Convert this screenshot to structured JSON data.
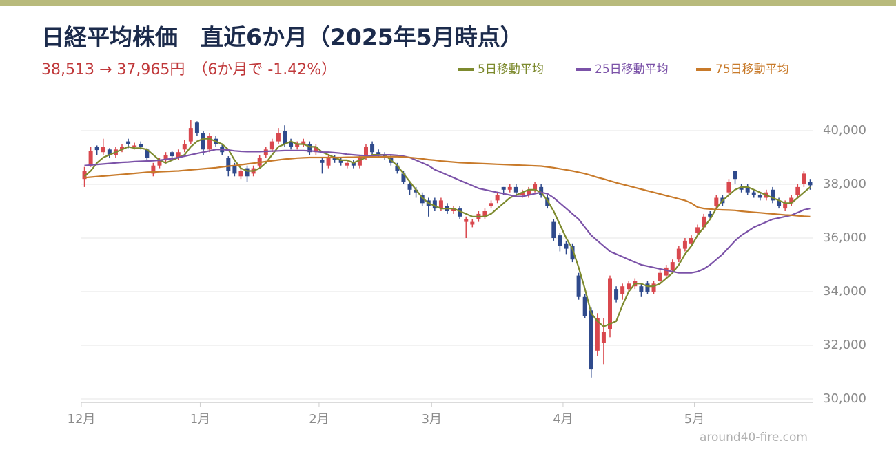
{
  "chart_data": {
    "type": "candlestick",
    "title": "日経平均株価　直近6か月（2025年5月時点）",
    "subtitle": "38,513 → 37,965円　（6か月で -1.42%）",
    "watermark": "around40-fire.com",
    "categories": [
      "12月",
      null,
      null,
      null,
      null,
      null,
      null,
      null,
      null,
      null,
      null,
      null,
      null,
      null,
      null,
      null,
      null,
      null,
      null,
      "1月",
      null,
      null,
      null,
      null,
      null,
      null,
      null,
      null,
      null,
      null,
      null,
      null,
      null,
      null,
      null,
      null,
      null,
      null,
      "2月",
      null,
      null,
      null,
      null,
      null,
      null,
      null,
      null,
      null,
      null,
      null,
      null,
      null,
      null,
      null,
      null,
      null,
      "3月",
      null,
      null,
      null,
      null,
      null,
      null,
      null,
      null,
      null,
      null,
      null,
      null,
      null,
      null,
      null,
      null,
      null,
      null,
      null,
      null,
      "4月",
      null,
      null,
      null,
      null,
      null,
      null,
      null,
      null,
      null,
      null,
      null,
      null,
      null,
      null,
      null,
      null,
      null,
      null,
      null,
      null,
      "5月",
      null,
      null,
      null,
      null,
      null,
      null,
      null,
      null,
      null,
      null,
      null,
      null,
      null,
      null,
      null,
      null,
      null,
      null
    ],
    "open": [
      38200,
      38700,
      39400,
      39200,
      39300,
      39100,
      39300,
      39600,
      39400,
      39500,
      39300,
      38400,
      38700,
      38900,
      39200,
      39000,
      39300,
      39600,
      40300,
      39900,
      39300,
      39700,
      39400,
      39000,
      38700,
      38300,
      38600,
      38400,
      38700,
      39100,
      39300,
      39600,
      40000,
      39600,
      39400,
      39500,
      39500,
      39200,
      38900,
      38700,
      39000,
      38900,
      38700,
      38800,
      38700,
      39000,
      39500,
      39200,
      39100,
      39000,
      38700,
      38400,
      38000,
      37800,
      37600,
      37400,
      37400,
      37100,
      37200,
      37000,
      37100,
      36600,
      36500,
      36700,
      36800,
      37200,
      37400,
      37900,
      37800,
      37900,
      37600,
      37600,
      37800,
      37900,
      37500,
      36600,
      36100,
      35800,
      35700,
      34600,
      33800,
      33300,
      31800,
      32100,
      32600,
      34100,
      33900,
      34100,
      34200,
      34200,
      34300,
      34000,
      34400,
      34600,
      34800,
      35200,
      35600,
      35800,
      36200,
      36400,
      36900,
      37200,
      37500,
      37700,
      38500,
      37900,
      37900,
      37700,
      37600,
      37500,
      37800,
      37400,
      37100,
      37300,
      37600,
      38000,
      38100
    ],
    "high": [
      38650,
      39400,
      39450,
      39700,
      39350,
      39400,
      39500,
      39700,
      39550,
      39600,
      39350,
      38800,
      39000,
      39200,
      39250,
      39300,
      39650,
      40400,
      40350,
      40000,
      39900,
      39800,
      39500,
      39050,
      38800,
      38600,
      38700,
      38700,
      39100,
      39400,
      39700,
      40100,
      40200,
      39700,
      39600,
      39700,
      39600,
      39500,
      39000,
      39100,
      39100,
      39000,
      38900,
      38900,
      39100,
      39500,
      39600,
      39300,
      39200,
      39100,
      38800,
      38500,
      38100,
      37900,
      37700,
      37500,
      37500,
      37500,
      37300,
      37200,
      37200,
      36800,
      36700,
      37000,
      37100,
      37400,
      37700,
      37900,
      38000,
      38000,
      37800,
      37900,
      38100,
      38000,
      37600,
      36700,
      36200,
      35900,
      35800,
      34700,
      33900,
      33400,
      33200,
      33000,
      34600,
      34200,
      34300,
      34400,
      34500,
      34300,
      34400,
      34400,
      34800,
      35000,
      35200,
      35700,
      36000,
      36100,
      36500,
      36900,
      37000,
      37600,
      37600,
      38200,
      38500,
      38000,
      38000,
      37800,
      37700,
      37800,
      37900,
      37500,
      37400,
      37600,
      38000,
      38500,
      38200
    ],
    "low": [
      37900,
      38650,
      39100,
      39100,
      39000,
      39000,
      39200,
      39350,
      39300,
      39300,
      38900,
      38300,
      38600,
      38800,
      38950,
      38900,
      39200,
      39500,
      39800,
      39100,
      39200,
      39400,
      39100,
      38300,
      38300,
      38200,
      38100,
      38300,
      38600,
      39000,
      39200,
      39500,
      39400,
      39300,
      39300,
      39400,
      39100,
      39100,
      38400,
      38600,
      38800,
      38700,
      38600,
      38600,
      38600,
      38900,
      39100,
      39000,
      38900,
      38700,
      38400,
      38000,
      37600,
      37500,
      37200,
      36800,
      37000,
      37000,
      36900,
      36900,
      36700,
      36000,
      36400,
      36600,
      36700,
      37100,
      37300,
      37600,
      37700,
      37600,
      37500,
      37500,
      37700,
      37500,
      37100,
      35900,
      35500,
      35400,
      35100,
      33700,
      33000,
      30800,
      31600,
      31300,
      32300,
      33600,
      33700,
      34000,
      34100,
      33800,
      33900,
      33900,
      34300,
      34500,
      34700,
      35100,
      35500,
      35700,
      36100,
      36300,
      36700,
      37100,
      37200,
      37600,
      38000,
      37700,
      37600,
      37500,
      37400,
      37400,
      37300,
      37100,
      37000,
      37200,
      37500,
      37900,
      37800
    ],
    "close": [
      38510,
      39250,
      39280,
      39400,
      39100,
      39300,
      39400,
      39500,
      39450,
      39400,
      39000,
      38700,
      38900,
      39100,
      39050,
      39200,
      39500,
      40100,
      39900,
      39300,
      39800,
      39500,
      39200,
      38500,
      38400,
      38500,
      38300,
      38600,
      39000,
      39300,
      39600,
      39900,
      39500,
      39400,
      39500,
      39600,
      39200,
      39400,
      38800,
      39000,
      38900,
      38800,
      38800,
      38700,
      39000,
      39400,
      39200,
      39100,
      39000,
      38800,
      38500,
      38100,
      37800,
      37700,
      37300,
      37200,
      37100,
      37400,
      37000,
      37100,
      36800,
      36700,
      36600,
      36900,
      37000,
      37300,
      37600,
      37800,
      37900,
      37700,
      37700,
      37800,
      38000,
      37600,
      37200,
      36000,
      35700,
      35600,
      35200,
      33800,
      33100,
      31100,
      33000,
      32500,
      34500,
      33700,
      34200,
      34300,
      34400,
      34000,
      34000,
      34300,
      34700,
      34900,
      35100,
      35600,
      35900,
      36000,
      36400,
      36800,
      36800,
      37500,
      37300,
      38100,
      38200,
      37800,
      37700,
      37600,
      37500,
      37700,
      37400,
      37200,
      37300,
      37500,
      37900,
      38400,
      37965
    ],
    "up_color": "#d9484e",
    "down_color": "#2f4a8c",
    "series": [
      {
        "name": "5日移動平均",
        "color": "#7d8a2e",
        "values": [
          38300,
          38500,
          38800,
          39000,
          39100,
          39200,
          39300,
          39400,
          39350,
          39350,
          39300,
          39100,
          38900,
          38800,
          38900,
          39000,
          39100,
          39400,
          39600,
          39700,
          39700,
          39600,
          39500,
          39300,
          38900,
          38600,
          38500,
          38500,
          38600,
          38800,
          39100,
          39400,
          39500,
          39600,
          39500,
          39500,
          39400,
          39400,
          39200,
          39100,
          39000,
          38900,
          38900,
          38800,
          38900,
          39000,
          39100,
          39100,
          39100,
          38900,
          38700,
          38400,
          38100,
          37800,
          37500,
          37300,
          37200,
          37100,
          37100,
          37100,
          37000,
          36900,
          36800,
          36800,
          36800,
          36900,
          37100,
          37300,
          37500,
          37600,
          37700,
          37800,
          37800,
          37700,
          37400,
          37000,
          36500,
          36000,
          35600,
          34900,
          34100,
          33200,
          32900,
          32700,
          32800,
          32900,
          33500,
          34000,
          34300,
          34300,
          34200,
          34200,
          34300,
          34500,
          34700,
          35000,
          35400,
          35700,
          36100,
          36400,
          36700,
          37100,
          37400,
          37600,
          37800,
          37900,
          37900,
          37800,
          37700,
          37600,
          37500,
          37400,
          37300,
          37300,
          37500,
          37700,
          37900
        ]
      },
      {
        "name": "25日移動平均",
        "color": "#7b52a8",
        "values": [
          38700,
          38720,
          38740,
          38760,
          38780,
          38800,
          38820,
          38830,
          38850,
          38860,
          38870,
          38880,
          38900,
          38930,
          38960,
          39000,
          39050,
          39100,
          39150,
          39200,
          39250,
          39300,
          39300,
          39280,
          39250,
          39230,
          39220,
          39220,
          39220,
          39230,
          39240,
          39250,
          39260,
          39260,
          39260,
          39260,
          39250,
          39230,
          39200,
          39200,
          39180,
          39160,
          39120,
          39100,
          39080,
          39070,
          39070,
          39080,
          39100,
          39100,
          39080,
          39050,
          39000,
          38900,
          38800,
          38700,
          38550,
          38450,
          38350,
          38250,
          38150,
          38050,
          37950,
          37850,
          37800,
          37750,
          37700,
          37650,
          37600,
          37550,
          37550,
          37600,
          37650,
          37700,
          37650,
          37500,
          37300,
          37100,
          36900,
          36700,
          36400,
          36100,
          35900,
          35700,
          35500,
          35400,
          35300,
          35200,
          35100,
          35000,
          34950,
          34900,
          34850,
          34800,
          34750,
          34700,
          34700,
          34700,
          34750,
          34850,
          35000,
          35200,
          35400,
          35650,
          35900,
          36100,
          36250,
          36400,
          36500,
          36600,
          36700,
          36750,
          36800,
          36850,
          36950,
          37050,
          37100
        ]
      },
      {
        "name": "75日移動平均",
        "color": "#c87a2a",
        "values": [
          38250,
          38270,
          38290,
          38310,
          38330,
          38350,
          38370,
          38390,
          38410,
          38430,
          38450,
          38460,
          38470,
          38480,
          38490,
          38500,
          38520,
          38540,
          38560,
          38580,
          38600,
          38620,
          38650,
          38680,
          38700,
          38730,
          38760,
          38790,
          38820,
          38850,
          38880,
          38910,
          38940,
          38960,
          38980,
          38990,
          39000,
          39000,
          39000,
          39000,
          39000,
          39000,
          39010,
          39010,
          39020,
          39020,
          39020,
          39020,
          39030,
          39030,
          39030,
          39020,
          39000,
          38980,
          38950,
          38920,
          38900,
          38870,
          38850,
          38830,
          38810,
          38800,
          38790,
          38780,
          38770,
          38760,
          38750,
          38740,
          38730,
          38720,
          38710,
          38700,
          38690,
          38680,
          38650,
          38620,
          38580,
          38540,
          38500,
          38450,
          38400,
          38330,
          38260,
          38200,
          38130,
          38060,
          38000,
          37940,
          37880,
          37820,
          37760,
          37700,
          37640,
          37580,
          37520,
          37460,
          37400,
          37300,
          37150,
          37100,
          37080,
          37060,
          37050,
          37040,
          37030,
          37000,
          36980,
          36960,
          36940,
          36920,
          36900,
          36880,
          36860,
          36850,
          36830,
          36810,
          36800
        ]
      }
    ],
    "ylim": [
      30000,
      40000
    ],
    "yticks": [
      {
        "value": 30000,
        "label": "30,000"
      },
      {
        "value": 32000,
        "label": "32,000"
      },
      {
        "value": 34000,
        "label": "34,000"
      },
      {
        "value": 36000,
        "label": "36,000"
      },
      {
        "value": 38000,
        "label": "38,000"
      },
      {
        "value": 40000,
        "label": "40,000"
      }
    ],
    "grid": true,
    "legend": "top-right"
  }
}
